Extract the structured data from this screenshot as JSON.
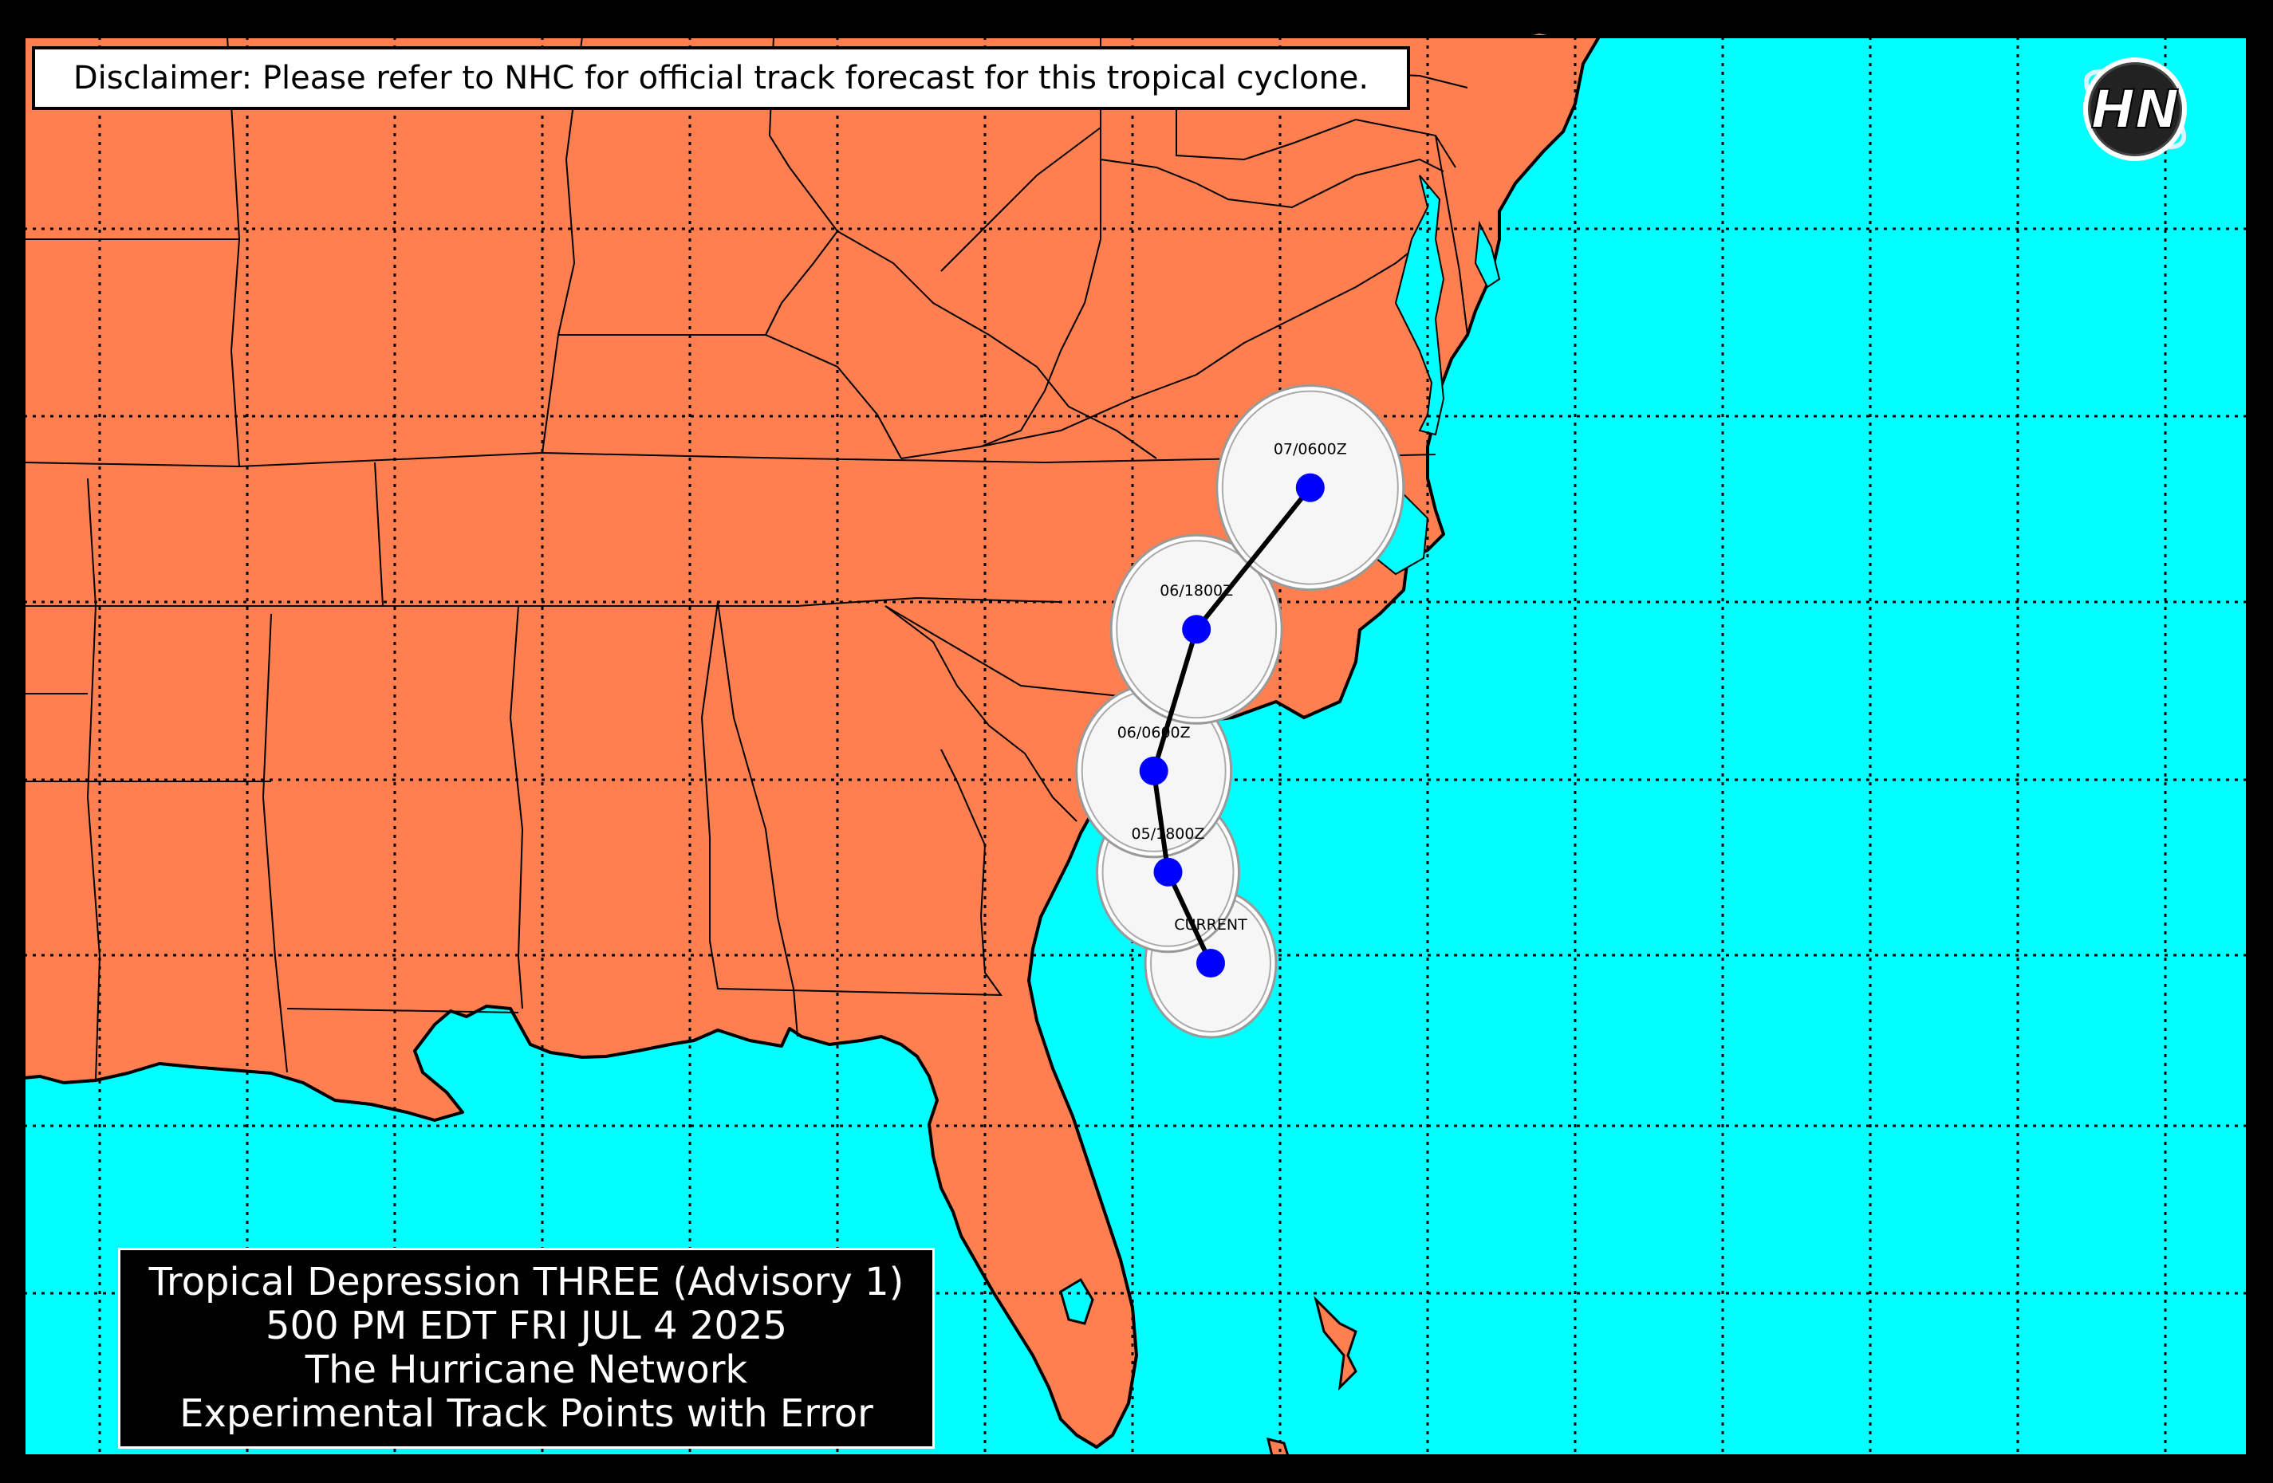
{
  "disclaimer": "Disclaimer: Please refer to NHC for official track forecast for this tropical cyclone.",
  "title": {
    "line1": "Tropical Depression THREE (Advisory 1)",
    "line2": "500 PM EDT FRI JUL 4 2025",
    "line3": "The Hurricane Network",
    "line4": "Experimental Track Points with Error"
  },
  "logo_text": "HN",
  "colors": {
    "land": "#ff7f50",
    "ocean": "#00ffff",
    "track_point": "#0000ff",
    "error_cone": "#f6f6f6",
    "frame": "#000000"
  },
  "track_points": [
    {
      "label": "CURRENT",
      "lat": 31.0,
      "lon": -79.5
    },
    {
      "label": "05/1800Z",
      "lat": 31.9,
      "lon": -79.8
    },
    {
      "label": "06/0600Z",
      "lat": 32.9,
      "lon": -79.9
    },
    {
      "label": "06/1800Z",
      "lat": 34.3,
      "lon": -79.6
    },
    {
      "label": "07/0600Z",
      "lat": 35.7,
      "lon": -78.8
    }
  ],
  "map": {
    "projection": "plate carree",
    "gridlines": "dotted",
    "region": "Eastern United States and Western Atlantic"
  }
}
